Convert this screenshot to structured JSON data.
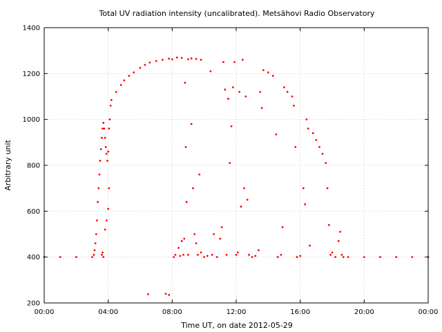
{
  "chart_data": {
    "type": "scatter",
    "title": "Total UV radiation intensity (uncalibrated). Metsähovi Radio Observatory",
    "xlabel": "Time UT, on date 2012-05-29",
    "ylabel": "Arbitrary unit",
    "xlim": [
      "00:00",
      "24:00"
    ],
    "ylim": [
      200,
      1400
    ],
    "x_tick_labels": [
      "00:00",
      "04:00",
      "08:00",
      "12:00",
      "16:00",
      "20:00",
      "00:00"
    ],
    "y_tick_labels": [
      "200",
      "400",
      "600",
      "800",
      "1000",
      "1200",
      "1400"
    ],
    "grid": true,
    "colors": {
      "points": "#ff0000",
      "grid": "#c8c8c8",
      "axes": "#000000"
    },
    "series": [
      {
        "points": [
          [
            0.0,
            400
          ],
          [
            1.0,
            400
          ],
          [
            2.0,
            400
          ],
          [
            3.0,
            400
          ],
          [
            3.1,
            410
          ],
          [
            3.15,
            430
          ],
          [
            3.2,
            460
          ],
          [
            3.25,
            500
          ],
          [
            3.3,
            560
          ],
          [
            3.35,
            640
          ],
          [
            3.4,
            700
          ],
          [
            3.45,
            760
          ],
          [
            3.5,
            820
          ],
          [
            3.55,
            870
          ],
          [
            3.6,
            920
          ],
          [
            3.65,
            960
          ],
          [
            3.7,
            985
          ],
          [
            3.75,
            960
          ],
          [
            3.8,
            920
          ],
          [
            3.85,
            880
          ],
          [
            3.9,
            850
          ],
          [
            3.95,
            820
          ],
          [
            4.0,
            860
          ],
          [
            4.05,
            960
          ],
          [
            4.1,
            1000
          ],
          [
            4.15,
            1060
          ],
          [
            4.2,
            1085
          ],
          [
            4.5,
            1120
          ],
          [
            4.8,
            1150
          ],
          [
            5.0,
            1170
          ],
          [
            5.3,
            1190
          ],
          [
            5.6,
            1205
          ],
          [
            6.0,
            1225
          ],
          [
            6.3,
            1238
          ],
          [
            6.6,
            1248
          ],
          [
            7.0,
            1255
          ],
          [
            7.4,
            1260
          ],
          [
            7.8,
            1265
          ],
          [
            8.0,
            1262
          ],
          [
            8.3,
            1270
          ],
          [
            8.6,
            1268
          ],
          [
            9.0,
            1262
          ],
          [
            9.2,
            1266
          ],
          [
            9.5,
            1264
          ],
          [
            9.8,
            1260
          ],
          [
            3.6,
            410
          ],
          [
            3.65,
            420
          ],
          [
            3.7,
            400
          ],
          [
            3.8,
            520
          ],
          [
            3.9,
            560
          ],
          [
            4.0,
            610
          ],
          [
            4.05,
            700
          ],
          [
            7.6,
            240
          ],
          [
            7.8,
            235
          ],
          [
            6.5,
            238
          ],
          [
            8.1,
            400
          ],
          [
            8.2,
            410
          ],
          [
            8.4,
            440
          ],
          [
            8.5,
            405
          ],
          [
            8.6,
            470
          ],
          [
            8.7,
            410
          ],
          [
            8.75,
            480
          ],
          [
            8.8,
            1160
          ],
          [
            8.85,
            880
          ],
          [
            8.9,
            640
          ],
          [
            9.0,
            410
          ],
          [
            9.2,
            980
          ],
          [
            9.3,
            700
          ],
          [
            9.4,
            500
          ],
          [
            9.5,
            460
          ],
          [
            9.6,
            410
          ],
          [
            9.7,
            760
          ],
          [
            9.8,
            420
          ],
          [
            10.0,
            400
          ],
          [
            10.2,
            405
          ],
          [
            10.4,
            1210
          ],
          [
            10.5,
            410
          ],
          [
            10.6,
            500
          ],
          [
            10.8,
            400
          ],
          [
            11.0,
            480
          ],
          [
            11.1,
            530
          ],
          [
            11.2,
            1250
          ],
          [
            11.3,
            1130
          ],
          [
            11.4,
            410
          ],
          [
            11.5,
            1090
          ],
          [
            11.6,
            810
          ],
          [
            11.7,
            970
          ],
          [
            11.8,
            1140
          ],
          [
            11.9,
            1250
          ],
          [
            12.0,
            410
          ],
          [
            12.1,
            420
          ],
          [
            12.2,
            1120
          ],
          [
            12.3,
            620
          ],
          [
            12.4,
            1260
          ],
          [
            12.5,
            700
          ],
          [
            12.6,
            1100
          ],
          [
            12.7,
            650
          ],
          [
            12.8,
            410
          ],
          [
            13.0,
            400
          ],
          [
            13.2,
            405
          ],
          [
            13.4,
            430
          ],
          [
            13.5,
            1120
          ],
          [
            13.6,
            1050
          ],
          [
            13.7,
            1215
          ],
          [
            14.0,
            1205
          ],
          [
            14.3,
            1190
          ],
          [
            14.5,
            935
          ],
          [
            14.6,
            400
          ],
          [
            14.8,
            410
          ],
          [
            14.9,
            530
          ],
          [
            15.0,
            1140
          ],
          [
            15.2,
            1120
          ],
          [
            15.5,
            1100
          ],
          [
            15.6,
            1060
          ],
          [
            15.7,
            880
          ],
          [
            15.8,
            400
          ],
          [
            16.0,
            405
          ],
          [
            16.2,
            700
          ],
          [
            16.3,
            630
          ],
          [
            16.4,
            1000
          ],
          [
            16.5,
            960
          ],
          [
            16.6,
            450
          ],
          [
            16.8,
            940
          ],
          [
            17.0,
            910
          ],
          [
            17.2,
            880
          ],
          [
            17.4,
            850
          ],
          [
            17.6,
            810
          ],
          [
            17.7,
            700
          ],
          [
            17.8,
            540
          ],
          [
            17.9,
            410
          ],
          [
            18.0,
            420
          ],
          [
            18.2,
            400
          ],
          [
            18.4,
            470
          ],
          [
            18.5,
            510
          ],
          [
            18.6,
            410
          ],
          [
            18.7,
            400
          ],
          [
            19.0,
            400
          ],
          [
            20.0,
            400
          ],
          [
            21.0,
            400
          ],
          [
            22.0,
            400
          ],
          [
            23.0,
            400
          ],
          [
            24.0,
            400
          ]
        ]
      }
    ]
  }
}
